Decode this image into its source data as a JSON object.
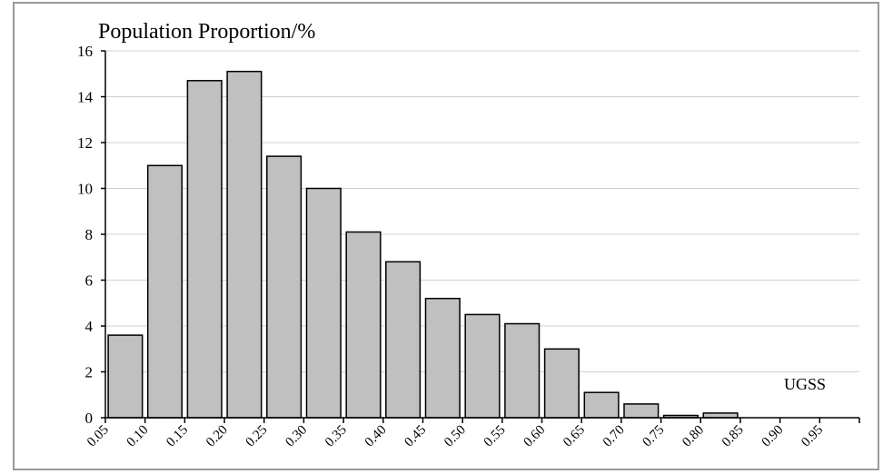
{
  "chart_data": {
    "type": "bar",
    "title": "Population Proportion/%",
    "annotation": "UGSS",
    "categories": [
      "0.05",
      "0.10",
      "0.15",
      "0.20",
      "0.25",
      "0.30",
      "0.35",
      "0.40",
      "0.45",
      "0.50",
      "0.55",
      "0.60",
      "0.65",
      "0.70",
      "0.75",
      "0.80",
      "0.85",
      "0.90",
      "0.95"
    ],
    "values": [
      3.6,
      11.0,
      14.7,
      15.1,
      11.4,
      10.0,
      8.1,
      6.8,
      5.2,
      4.5,
      4.1,
      3.0,
      1.1,
      0.6,
      0.1,
      0.2,
      0.0,
      0.0,
      0.0
    ],
    "yticks": [
      "0",
      "2",
      "4",
      "6",
      "8",
      "10",
      "12",
      "14",
      "16"
    ],
    "ylim": [
      0,
      16
    ],
    "grid": true,
    "colors": {
      "bar_fill": "#c0c0c0",
      "bar_stroke": "#000000",
      "grid": "#d0d0d0",
      "frame": "#9a9a9a"
    }
  }
}
